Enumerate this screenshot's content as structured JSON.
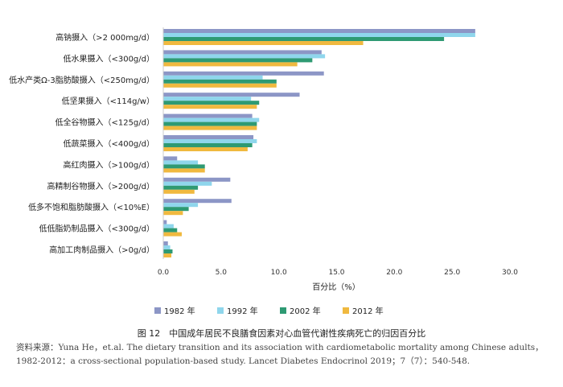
{
  "chart_data": {
    "type": "bar",
    "orientation": "horizontal",
    "categories": [
      "高钠摄入（>2 000mg/d）",
      "低水果摄入（<300g/d）",
      "低水产类Ω-3脂肪酸摄入（<250mg/d）",
      "低坚果摄入（<114g/w）",
      "低全谷物摄入（<125g/d）",
      "低蔬菜摄入（<400g/d）",
      "高红肉摄入（>100g/d）",
      "高精制谷物摄入（>200g/d）",
      "低多不饱和脂肪酸摄入（<10%E）",
      "低低脂奶制品摄入（<300g/d）",
      "高加工肉制品摄入（>0g/d）"
    ],
    "series": [
      {
        "name": "1982 年",
        "color": "#8c96c6",
        "values": [
          27.0,
          13.7,
          13.9,
          11.8,
          7.7,
          7.8,
          1.2,
          5.8,
          5.9,
          0.3,
          0.4
        ]
      },
      {
        "name": "1992 年",
        "color": "#8fd6ec",
        "values": [
          27.0,
          14.0,
          8.6,
          7.6,
          8.3,
          8.1,
          3.0,
          4.2,
          3.0,
          0.9,
          0.6
        ]
      },
      {
        "name": "2002 年",
        "color": "#2e9a73",
        "values": [
          24.3,
          12.9,
          9.8,
          8.3,
          8.1,
          7.7,
          3.6,
          3.0,
          2.2,
          1.2,
          0.8
        ]
      },
      {
        "name": "2012 年",
        "color": "#f0b93f",
        "values": [
          17.3,
          11.6,
          9.8,
          8.1,
          8.1,
          7.3,
          3.6,
          2.7,
          1.7,
          1.6,
          0.7
        ]
      }
    ],
    "xlabel": "百分比（%）",
    "xlim": [
      0,
      30
    ],
    "xticks": [
      "0.0",
      "5.0",
      "10.0",
      "15.0",
      "20.0",
      "25.0",
      "30.0"
    ],
    "grid": false,
    "legend_position": "bottom"
  },
  "caption": "图 12　中国成年居民不良膳食因素对心血管代谢性疾病死亡的归因百分比",
  "source_text": "资料来源：Yuna He，et.al. The dietary transition and its association with cardiometabolic mortality among Chinese adults，1982-2012：a cross-sectional population-based study. Lancet Diabetes Endocrinol 2019；7（7）：540-548."
}
